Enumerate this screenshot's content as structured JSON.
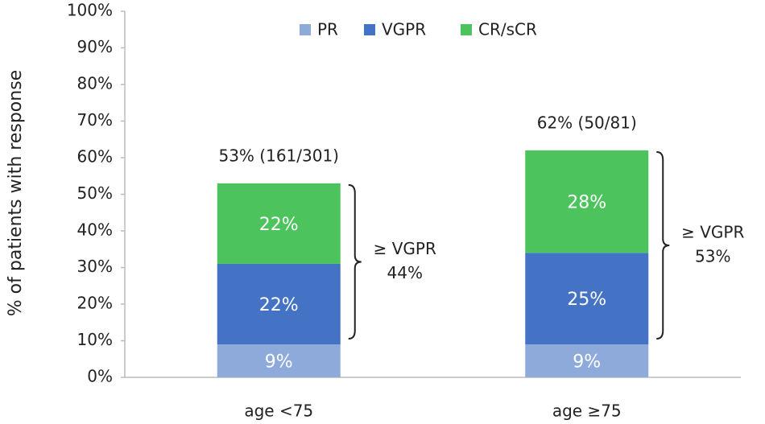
{
  "chart_data": {
    "type": "stacked_bar",
    "ylabel": "% of patients with response",
    "categories": [
      "age <75",
      "age ≥75"
    ],
    "series": [
      {
        "name": "PR",
        "color": "#8eaadb",
        "values": [
          9,
          9
        ],
        "value_labels": [
          "9%",
          "9%"
        ]
      },
      {
        "name": "VGPR",
        "color": "#4472c4",
        "values": [
          22,
          25
        ],
        "value_labels": [
          "22%",
          "25%"
        ]
      },
      {
        "name": "CR/sCR",
        "color": "#4cc35c",
        "values": [
          22,
          28
        ],
        "value_labels": [
          "22%",
          "28%"
        ]
      }
    ],
    "ylim": [
      0,
      100
    ],
    "yticks": [
      {
        "value": 0,
        "label": "0%"
      },
      {
        "value": 10,
        "label": "10%"
      },
      {
        "value": 20,
        "label": "20%"
      },
      {
        "value": 30,
        "label": "30%"
      },
      {
        "value": 40,
        "label": "40%"
      },
      {
        "value": 50,
        "label": "50%"
      },
      {
        "value": 60,
        "label": "60%"
      },
      {
        "value": 70,
        "label": "70%"
      },
      {
        "value": 80,
        "label": "80%"
      },
      {
        "value": 90,
        "label": "90%"
      },
      {
        "value": 100,
        "label": "100%"
      }
    ],
    "legend": "top",
    "total_labels": [
      "53% (161/301)",
      "62% (50/81)"
    ],
    "bracket_labels": [
      [
        "≥ VGPR",
        "44%"
      ],
      [
        "≥ VGPR",
        "53%"
      ]
    ]
  }
}
